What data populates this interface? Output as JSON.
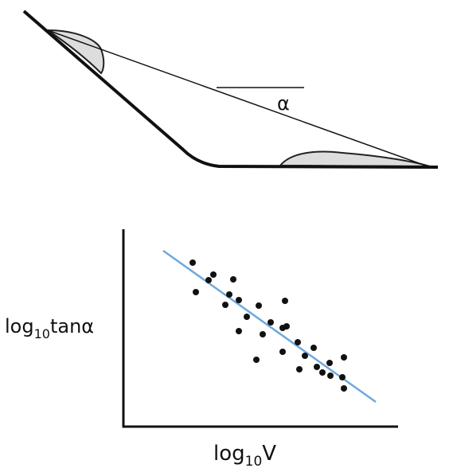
{
  "diagram": {
    "angle_label": "α"
  },
  "plot": {
    "y_label": {
      "base": "log",
      "sub": "10",
      "rest": "tanα"
    },
    "x_label": {
      "base": "log",
      "sub": "10",
      "rest": "V"
    }
  }
}
